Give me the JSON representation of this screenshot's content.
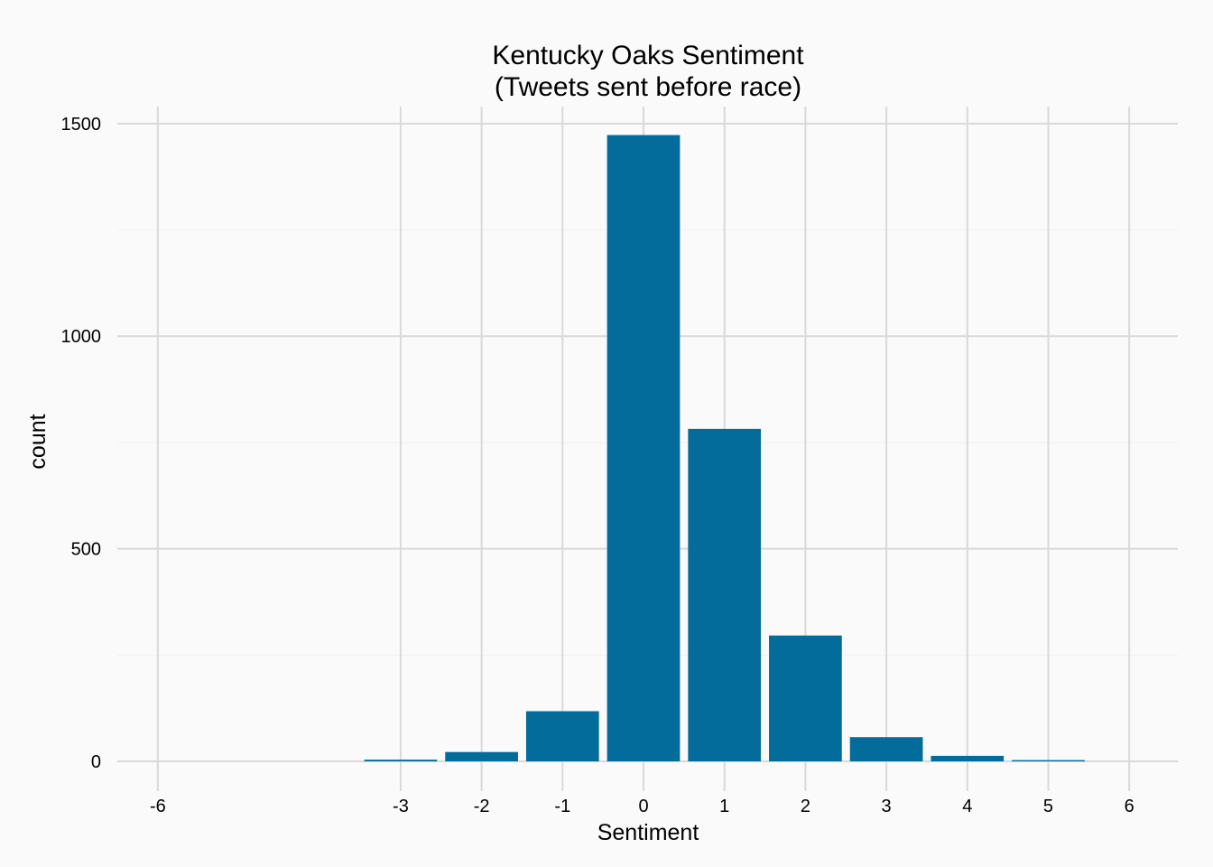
{
  "chart_data": {
    "type": "bar",
    "title": "Kentucky Oaks Sentiment",
    "subtitle": "(Tweets sent before race)",
    "xlabel": "Sentiment",
    "ylabel": "count",
    "x": [
      -3,
      -2,
      -1,
      0,
      1,
      2,
      3,
      4,
      5
    ],
    "values": [
      4,
      22,
      118,
      1473,
      782,
      296,
      57,
      13,
      3
    ],
    "bar_width": 0.9,
    "xlim": [
      -6.5,
      6.6
    ],
    "ylim": [
      -70,
      1540
    ],
    "x_ticks": [
      -6,
      -3,
      -2,
      -1,
      0,
      1,
      2,
      3,
      4,
      5,
      6
    ],
    "x_tick_labels": [
      "-6",
      "-3",
      "-2",
      "-1",
      "0",
      "1",
      "2",
      "3",
      "4",
      "5",
      "6"
    ],
    "y_ticks": [
      0,
      500,
      1000,
      1500
    ],
    "y_tick_labels": [
      "0",
      "500",
      "1000",
      "1500"
    ],
    "y_minor_ticks": [
      250,
      750,
      1250
    ],
    "grid": true,
    "legend": "none",
    "colors": {
      "bar": "#046c9a",
      "grid_major": "#d9d9d9",
      "grid_minor": "#f0f0f0",
      "background": "#fafafa"
    }
  }
}
